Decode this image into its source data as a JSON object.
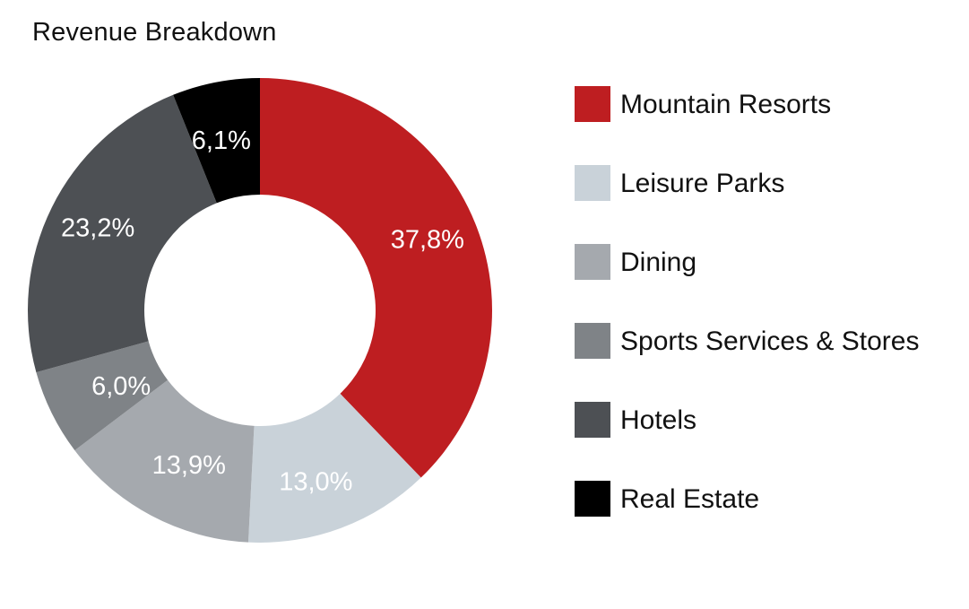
{
  "chart_data": {
    "type": "pie",
    "title": "Revenue Breakdown",
    "donut": true,
    "legend_position": "right",
    "start_angle_note": "clockwise from top",
    "series": [
      {
        "name": "Mountain Resorts",
        "value": 37.8,
        "label": "37,8%",
        "color": "#BE1E21"
      },
      {
        "name": "Leisure Parks",
        "value": 13.0,
        "label": "13,0%",
        "color": "#C9D2D9"
      },
      {
        "name": "Dining",
        "value": 13.9,
        "label": "13,9%",
        "color": "#A5A9AE"
      },
      {
        "name": "Sports Services & Stores",
        "value": 6.0,
        "label": "6,0%",
        "color": "#7F8387"
      },
      {
        "name": "Hotels",
        "value": 23.2,
        "label": "23,2%",
        "color": "#4D5054"
      },
      {
        "name": "Real Estate",
        "value": 6.1,
        "label": "6,1%",
        "color": "#000000"
      }
    ]
  }
}
